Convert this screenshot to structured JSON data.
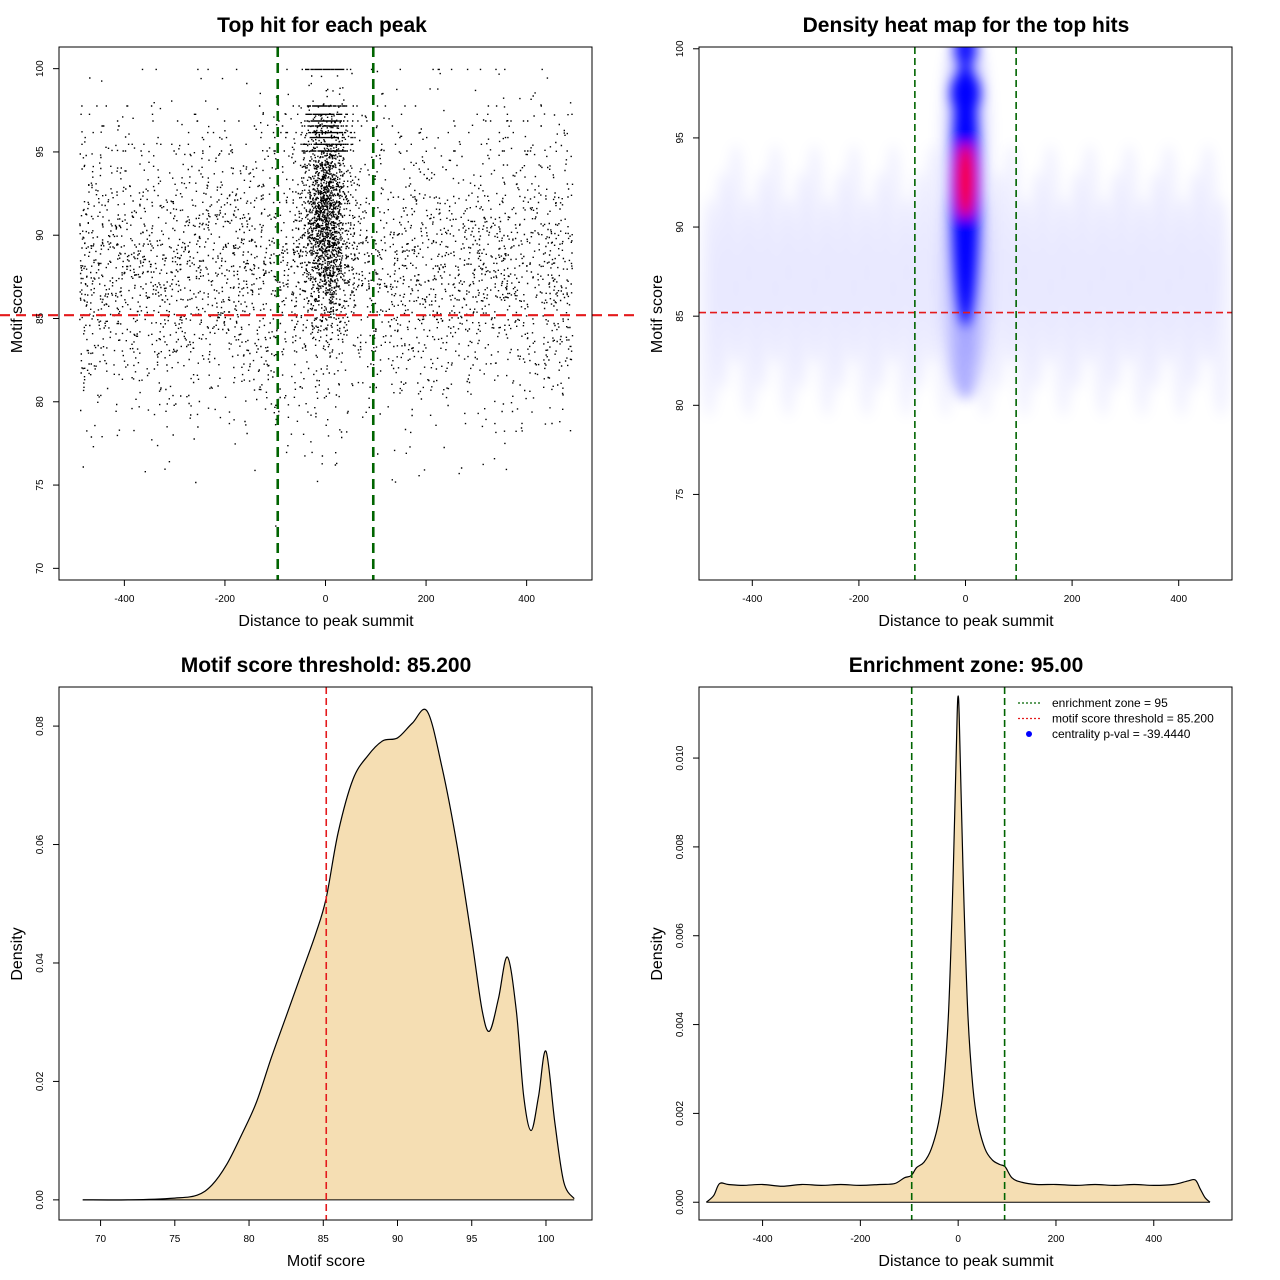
{
  "colors": {
    "points": "#000000",
    "threshold": "#e41a1c",
    "zone": "#006400",
    "fill": "#f5deb3",
    "outline": "#000000",
    "heat_low": "#ffffff",
    "heat_mid": "#0000ff",
    "heat_high": "#ff0000",
    "legend_dot": "#0000ff"
  },
  "chart_data": [
    {
      "id": "scatter",
      "type": "scatter",
      "title": "Top hit for each peak",
      "xlabel": "Distance to peak summit",
      "ylabel": "Motif score",
      "xlim": [
        -530,
        530
      ],
      "ylim": [
        69.3,
        101.3
      ],
      "xticks": [
        -400,
        -200,
        0,
        200,
        400
      ],
      "yticks": [
        70,
        75,
        80,
        85,
        90,
        95,
        100
      ],
      "threshold": 85.2,
      "zone": [
        -95,
        95
      ],
      "density_model": {
        "n_background": 3600,
        "n_central": 2600,
        "central_sd": 22,
        "score_levels": [
          100,
          97.8,
          97.3,
          96.9,
          96.6,
          96.2,
          95.9,
          95.5,
          95.1
        ],
        "background_mean": 87.5,
        "background_sd": 4.4,
        "central_mean": 91,
        "central_sd_score": 3.0
      }
    },
    {
      "id": "heatmap",
      "type": "heatmap",
      "title": "Density heat map for the top hits",
      "xlabel": "Distance to peak summit",
      "ylabel": "Motif score",
      "xlim": [
        -500,
        500
      ],
      "ylim": [
        70.2,
        100.1
      ],
      "xticks": [
        -400,
        -200,
        0,
        200,
        400
      ],
      "yticks": [
        75,
        80,
        85,
        90,
        95,
        100
      ],
      "threshold": 85.2,
      "zone": [
        -95,
        95
      ],
      "peak": {
        "x": 0,
        "y": 92.6
      }
    },
    {
      "id": "score-density",
      "type": "area",
      "title": "Motif score threshold: 85.200",
      "xlabel": "Motif score",
      "ylabel": "Density",
      "xlim": [
        67.2,
        103.1
      ],
      "ylim": [
        -0.0034,
        0.0866
      ],
      "xticks": [
        70,
        75,
        80,
        85,
        90,
        95,
        100
      ],
      "yticks": [
        0.0,
        0.02,
        0.04,
        0.06,
        0.08
      ],
      "ytick_labels": [
        "0.00",
        "0.02",
        "0.04",
        "0.06",
        "0.08"
      ],
      "threshold": 85.2,
      "x": [
        68.8,
        72,
        75,
        76.5,
        77.5,
        78.5,
        79.5,
        80.5,
        81.5,
        82.5,
        83.5,
        84.5,
        85.2,
        86,
        87,
        88,
        89,
        90,
        91,
        92,
        93,
        94,
        95,
        95.7,
        96.2,
        96.8,
        97.4,
        98,
        98.5,
        99,
        99.5,
        100,
        100.6,
        101.2,
        101.9
      ],
      "y": [
        0.0,
        0.0,
        0.0003,
        0.0008,
        0.0025,
        0.006,
        0.011,
        0.0165,
        0.024,
        0.031,
        0.038,
        0.045,
        0.051,
        0.062,
        0.071,
        0.075,
        0.0775,
        0.078,
        0.0805,
        0.0825,
        0.073,
        0.06,
        0.044,
        0.032,
        0.0285,
        0.034,
        0.041,
        0.032,
        0.0175,
        0.0117,
        0.0175,
        0.0251,
        0.013,
        0.003,
        0.0002
      ]
    },
    {
      "id": "distance-density",
      "type": "area",
      "title": "Enrichment zone: 95.00",
      "xlabel": "Distance to peak summit",
      "ylabel": "Density",
      "xlim": [
        -530,
        560
      ],
      "ylim": [
        -0.0004,
        0.0116
      ],
      "xticks": [
        -400,
        -200,
        0,
        200,
        400
      ],
      "yticks": [
        0.0,
        0.002,
        0.004,
        0.006,
        0.008,
        0.01
      ],
      "ytick_labels": [
        "0.000",
        "0.002",
        "0.004",
        "0.006",
        "0.008",
        "0.010"
      ],
      "zone": [
        -95,
        95
      ],
      "x": [
        -515,
        -500,
        -488,
        -470,
        -440,
        -400,
        -360,
        -320,
        -280,
        -240,
        -200,
        -160,
        -130,
        -110,
        -96,
        -85,
        -70,
        -55,
        -40,
        -30,
        -20,
        -12,
        -6,
        -2,
        0,
        2,
        6,
        12,
        20,
        30,
        40,
        55,
        70,
        85,
        96,
        110,
        130,
        160,
        200,
        240,
        280,
        320,
        360,
        400,
        440,
        470,
        485,
        495,
        505,
        515
      ],
      "y": [
        0.0,
        0.00015,
        0.00042,
        0.0004,
        0.00038,
        0.0004,
        0.00036,
        0.0004,
        0.00038,
        0.0004,
        0.00038,
        0.0004,
        0.00042,
        0.00055,
        0.0006,
        0.00078,
        0.0009,
        0.0012,
        0.0018,
        0.0026,
        0.0042,
        0.0067,
        0.0092,
        0.011,
        0.0114,
        0.011,
        0.0092,
        0.0067,
        0.0042,
        0.0026,
        0.0018,
        0.0012,
        0.00095,
        0.00085,
        0.0008,
        0.00055,
        0.00045,
        0.0004,
        0.0004,
        0.00038,
        0.0004,
        0.00038,
        0.0004,
        0.00038,
        0.0004,
        0.00048,
        0.0005,
        0.0003,
        0.0001,
        0.0
      ],
      "legend": [
        {
          "text": "enrichment zone = 95",
          "style": "zone"
        },
        {
          "text": "motif score threshold = 85.200",
          "style": "threshold"
        },
        {
          "text": "centrality p-val = -39.4440",
          "style": "dot"
        }
      ]
    }
  ]
}
